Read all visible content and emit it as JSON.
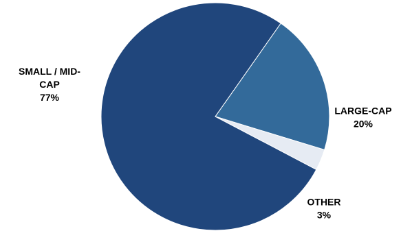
{
  "chart_data": {
    "type": "pie",
    "title": "",
    "slices": [
      {
        "name_lines": [
          "LARGE-CAP"
        ],
        "pct_label": "20%",
        "value": 20,
        "color": "#336a9a"
      },
      {
        "name_lines": [
          "OTHER"
        ],
        "pct_label": "3%",
        "value": 3,
        "color": "#e6ebf3"
      },
      {
        "name_lines": [
          "SMALL / MID-",
          "CAP"
        ],
        "pct_label": "77%",
        "value": 77,
        "color": "#20467c"
      }
    ],
    "start_angle_deg": -55,
    "direction": "clockwise",
    "legend": "none",
    "slice_border_color": "#ffffff"
  }
}
